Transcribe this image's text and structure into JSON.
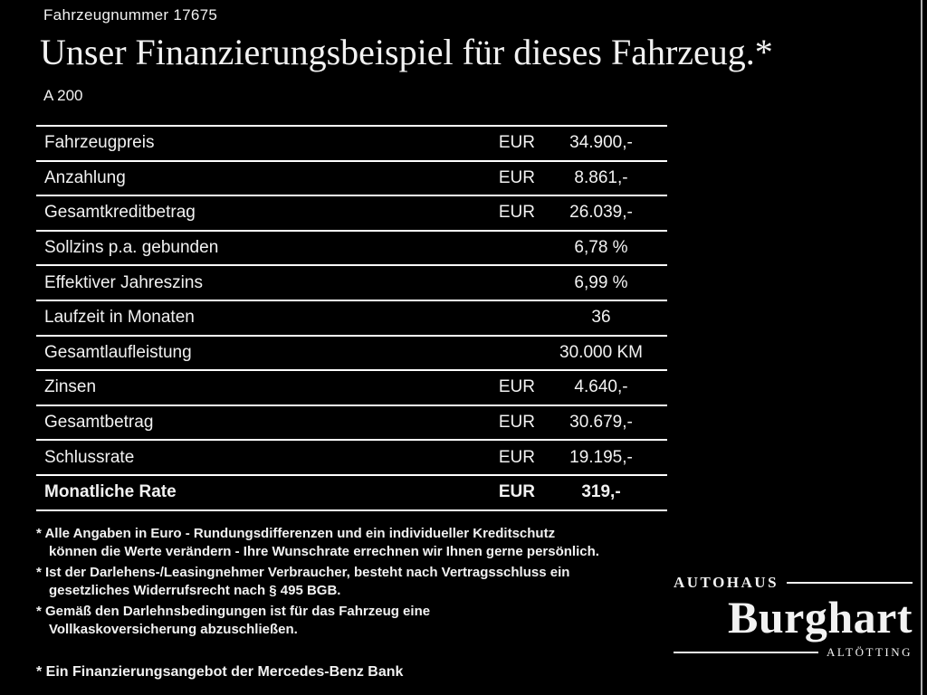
{
  "header": {
    "vehicle_number": "Fahrzeugnummer 17675",
    "title": "Unser Finanzierungsbeispiel für dieses Fahrzeug.*",
    "model": "A 200"
  },
  "table": {
    "rows": [
      {
        "label": "Fahrzeugpreis",
        "currency": "EUR",
        "value": "34.900,-"
      },
      {
        "label": "Anzahlung",
        "currency": "EUR",
        "value": "8.861,-"
      },
      {
        "label": "Gesamtkreditbetrag",
        "currency": "EUR",
        "value": "26.039,-"
      },
      {
        "label": "Sollzins p.a. gebunden",
        "currency": "",
        "value": "6,78 %"
      },
      {
        "label": "Effektiver Jahreszins",
        "currency": "",
        "value": "6,99 %"
      },
      {
        "label": "Laufzeit in Monaten",
        "currency": "",
        "value": "36"
      },
      {
        "label": "Gesamtlaufleistung",
        "currency": "",
        "value": "30.000 KM"
      },
      {
        "label": "Zinsen",
        "currency": "EUR",
        "value": "4.640,-"
      },
      {
        "label": "Gesamtbetrag",
        "currency": "EUR",
        "value": "30.679,-"
      },
      {
        "label": "Schlussrate",
        "currency": "EUR",
        "value": "19.195,-"
      },
      {
        "label": "Monatliche Rate",
        "currency": "EUR",
        "value": "319,-"
      }
    ]
  },
  "footnotes": [
    "* Alle Angaben in Euro - Rundungsdifferenzen und ein individueller Kreditschutz\nkönnen die Werte verändern - Ihre Wunschrate errechnen wir Ihnen gerne persönlich.",
    "* Ist der Darlehens-/Leasingnehmer Verbraucher, besteht nach Vertragsschluss ein\ngesetzliches Widerrufsrecht nach § 495 BGB.",
    "* Gemäß den Darlehnsbedingungen ist für das Fahrzeug eine\nVollkaskoversicherung abzuschließen."
  ],
  "financing_note": "* Ein Finanzierungsangebot der Mercedes-Benz Bank",
  "dealer": {
    "top": "AUTOHAUS",
    "name": "Burghart",
    "bottom": "ALTÖTTING"
  },
  "colors": {
    "background": "#000000",
    "text": "#f2f2f2",
    "line": "#ffffff"
  }
}
